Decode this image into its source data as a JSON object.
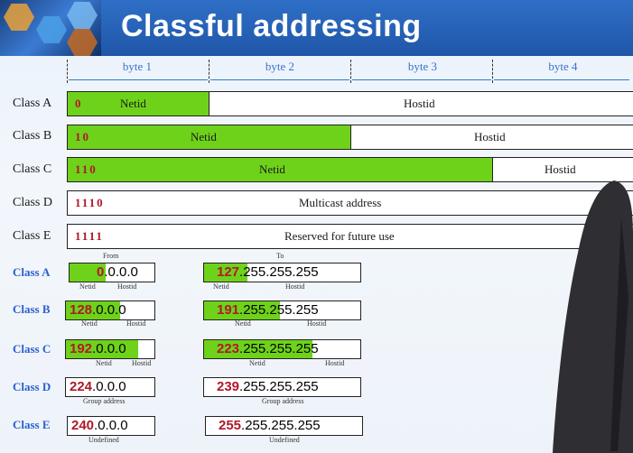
{
  "title": "Classful addressing",
  "bytes": [
    "byte 1",
    "byte 2",
    "byte 3",
    "byte 4"
  ],
  "classes": [
    {
      "label": "Class A",
      "bits": "0",
      "netid": "Netid",
      "hostid": "Hostid"
    },
    {
      "label": "Class B",
      "bits": "10",
      "netid": "Netid",
      "hostid": "Hostid"
    },
    {
      "label": "Class C",
      "bits": "110",
      "netid": "Netid",
      "hostid": "Hostid"
    },
    {
      "label": "Class D",
      "bits": "1110",
      "desc": "Multicast address"
    },
    {
      "label": "Class E",
      "bits": "1111",
      "desc": "Reserved for future use"
    }
  ],
  "range_headers": {
    "from": "From",
    "to": "To"
  },
  "ranges": [
    {
      "label": "Class A",
      "from_first": "0",
      "from_rest": ".0.0.0",
      "to_first": "127",
      "to_rest": ".255.255.255",
      "from_sub": [
        "Netid",
        "Hostid"
      ],
      "to_sub": [
        "Netid",
        "Hostid"
      ]
    },
    {
      "label": "Class B",
      "from_first": "128",
      "from_rest": ".0.0.0",
      "to_first": "191",
      "to_rest": ".255.255.255",
      "from_sub": [
        "Netid",
        "Hostid"
      ],
      "to_sub": [
        "Netid",
        "Hostid"
      ]
    },
    {
      "label": "Class C",
      "from_first": "192",
      "from_rest": ".0.0.0",
      "to_first": "223",
      "to_rest": ".255.255.255",
      "from_sub": [
        "Netid",
        "Hostid"
      ],
      "to_sub": [
        "Netid",
        "Hostid"
      ]
    },
    {
      "label": "Class D",
      "from_first": "224",
      "from_rest": ".0.0.0",
      "to_first": "239",
      "to_rest": ".255.255.255",
      "from_sub": [
        "Group address"
      ],
      "to_sub": [
        "Group address"
      ]
    },
    {
      "label": "Class E",
      "from_first": "240",
      "from_rest": ".0.0.0",
      "to_first": "255",
      "to_rest": ".255.255.255",
      "from_sub": [
        "Undefined"
      ],
      "to_sub": [
        "Undefined"
      ]
    }
  ]
}
